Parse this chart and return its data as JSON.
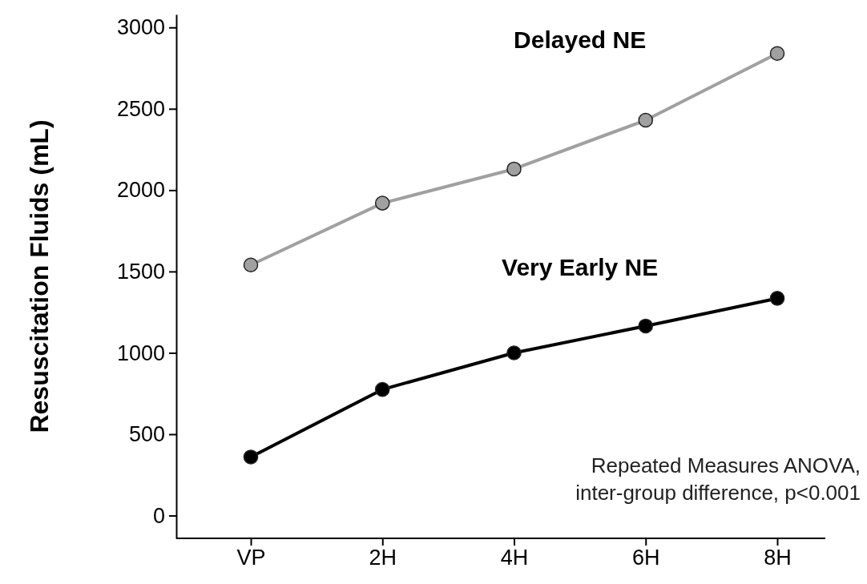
{
  "chart_data": {
    "type": "line",
    "ylabel": "Resuscitation Fluids  (mL)",
    "categories": [
      "VP",
      "2H",
      "4H",
      "6H",
      "8H"
    ],
    "series": [
      {
        "name": "Delayed NE",
        "color": "#a0a0a0",
        "values": [
          1540,
          1920,
          2130,
          2430,
          2840
        ]
      },
      {
        "name": "Very Early NE",
        "color": "#000000",
        "values": [
          360,
          775,
          1000,
          1165,
          1335
        ]
      }
    ],
    "ylim": [
      -140,
      3080
    ],
    "yticks": [
      0,
      500,
      1000,
      1500,
      2000,
      2500,
      3000
    ],
    "marker": "circle",
    "line_style": "solid",
    "annotations": [
      "Repeated Measures ANOVA,\ninter-group difference, p<0.001"
    ]
  }
}
